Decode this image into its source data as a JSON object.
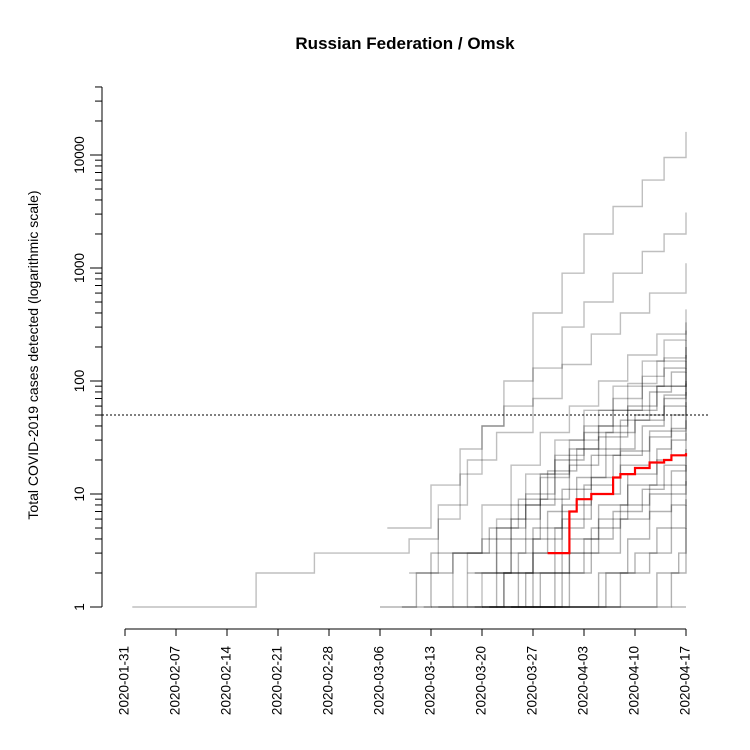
{
  "chart_data": {
    "type": "line",
    "title": "Russian Federation / Omsk",
    "xlabel": "",
    "ylabel": "Total COVID-2019 cases detected (logarithmic scale)",
    "x_range": [
      "2020-01-31",
      "2020-04-17"
    ],
    "x_tick_labels": [
      "2020-01-31",
      "2020-02-07",
      "2020-02-14",
      "2020-02-21",
      "2020-02-28",
      "2020-03-06",
      "2020-03-13",
      "2020-03-20",
      "2020-03-27",
      "2020-04-03",
      "2020-04-10",
      "2020-04-17"
    ],
    "y_scale": "log",
    "y_range": [
      1,
      40000
    ],
    "y_tick_labels": [
      "1",
      "10",
      "100",
      "1000",
      "10000"
    ],
    "reference_line": {
      "y": 50,
      "style": "dotted"
    },
    "grid": false,
    "colors": {
      "highlight": "#ff0000",
      "background_lines": "#000000"
    },
    "highlight_series": {
      "points": [
        [
          "2020-03-29",
          3
        ],
        [
          "2020-03-31",
          3
        ],
        [
          "2020-04-01",
          7
        ],
        [
          "2020-04-02",
          9
        ],
        [
          "2020-04-03",
          9
        ],
        [
          "2020-04-04",
          10
        ],
        [
          "2020-04-06",
          10
        ],
        [
          "2020-04-07",
          14
        ],
        [
          "2020-04-08",
          15
        ],
        [
          "2020-04-09",
          15
        ],
        [
          "2020-04-10",
          17
        ],
        [
          "2020-04-11",
          17
        ],
        [
          "2020-04-12",
          19
        ],
        [
          "2020-04-14",
          20
        ],
        [
          "2020-04-15",
          22
        ],
        [
          "2020-04-17",
          23
        ]
      ]
    },
    "background_series": [
      {
        "points": [
          [
            "2020-02-01",
            1
          ],
          [
            "2020-02-17",
            1
          ],
          [
            "2020-02-18",
            2
          ],
          [
            "2020-02-25",
            2
          ],
          [
            "2020-02-26",
            3
          ],
          [
            "2020-03-05",
            3
          ],
          [
            "2020-03-10",
            4
          ],
          [
            "2020-03-14",
            6
          ],
          [
            "2020-03-17",
            15
          ],
          [
            "2020-03-20",
            40
          ],
          [
            "2020-03-23",
            100
          ],
          [
            "2020-03-27",
            400
          ],
          [
            "2020-03-31",
            900
          ],
          [
            "2020-04-03",
            2000
          ],
          [
            "2020-04-07",
            3500
          ],
          [
            "2020-04-11",
            6000
          ],
          [
            "2020-04-14",
            9500
          ],
          [
            "2020-04-17",
            16000
          ]
        ],
        "opacity": 0.25
      },
      {
        "points": [
          [
            "2020-03-07",
            5
          ],
          [
            "2020-03-09",
            5
          ],
          [
            "2020-03-13",
            12
          ],
          [
            "2020-03-17",
            25
          ],
          [
            "2020-03-20",
            40
          ],
          [
            "2020-03-23",
            60
          ],
          [
            "2020-03-27",
            130
          ],
          [
            "2020-03-31",
            300
          ],
          [
            "2020-04-03",
            500
          ],
          [
            "2020-04-07",
            900
          ],
          [
            "2020-04-11",
            1400
          ],
          [
            "2020-04-14",
            2000
          ],
          [
            "2020-04-17",
            3100
          ]
        ],
        "opacity": 0.25
      },
      {
        "points": [
          [
            "2020-03-10",
            2
          ],
          [
            "2020-03-14",
            8
          ],
          [
            "2020-03-18",
            20
          ],
          [
            "2020-03-22",
            35
          ],
          [
            "2020-03-27",
            70
          ],
          [
            "2020-03-31",
            140
          ],
          [
            "2020-04-04",
            260
          ],
          [
            "2020-04-08",
            400
          ],
          [
            "2020-04-12",
            600
          ],
          [
            "2020-04-17",
            1100
          ]
        ],
        "opacity": 0.25
      },
      {
        "points": [
          [
            "2020-03-12",
            1
          ],
          [
            "2020-03-16",
            3
          ],
          [
            "2020-03-20",
            8
          ],
          [
            "2020-03-24",
            18
          ],
          [
            "2020-03-28",
            35
          ],
          [
            "2020-04-01",
            60
          ],
          [
            "2020-04-05",
            100
          ],
          [
            "2020-04-09",
            170
          ],
          [
            "2020-04-13",
            260
          ],
          [
            "2020-04-17",
            430
          ]
        ],
        "opacity": 0.25
      },
      {
        "points": [
          [
            "2020-03-14",
            1
          ],
          [
            "2020-03-18",
            3
          ],
          [
            "2020-03-22",
            6
          ],
          [
            "2020-03-26",
            15
          ],
          [
            "2020-03-30",
            30
          ],
          [
            "2020-04-03",
            55
          ],
          [
            "2020-04-07",
            90
          ],
          [
            "2020-04-11",
            150
          ],
          [
            "2020-04-14",
            230
          ],
          [
            "2020-04-17",
            330
          ]
        ],
        "opacity": 0.25
      },
      {
        "points": [
          [
            "2020-03-16",
            1
          ],
          [
            "2020-03-20",
            2
          ],
          [
            "2020-03-24",
            6
          ],
          [
            "2020-03-28",
            14
          ],
          [
            "2020-04-01",
            30
          ],
          [
            "2020-04-05",
            55
          ],
          [
            "2020-04-09",
            95
          ],
          [
            "2020-04-13",
            150
          ],
          [
            "2020-04-17",
            280
          ]
        ],
        "opacity": 0.25
      },
      {
        "points": [
          [
            "2020-03-18",
            2
          ],
          [
            "2020-03-22",
            5
          ],
          [
            "2020-03-26",
            10
          ],
          [
            "2020-03-30",
            22
          ],
          [
            "2020-04-03",
            40
          ],
          [
            "2020-04-07",
            70
          ],
          [
            "2020-04-11",
            110
          ],
          [
            "2020-04-14",
            160
          ],
          [
            "2020-04-17",
            230
          ]
        ],
        "opacity": 0.25
      },
      {
        "points": [
          [
            "2020-03-18",
            1
          ],
          [
            "2020-03-22",
            3
          ],
          [
            "2020-03-26",
            8
          ],
          [
            "2020-03-30",
            20
          ],
          [
            "2020-04-03",
            35
          ],
          [
            "2020-04-07",
            55
          ],
          [
            "2020-04-11",
            90
          ],
          [
            "2020-04-14",
            130
          ],
          [
            "2020-04-17",
            200
          ]
        ],
        "opacity": 0.3
      },
      {
        "points": [
          [
            "2020-03-19",
            1
          ],
          [
            "2020-03-23",
            2
          ],
          [
            "2020-03-27",
            5
          ],
          [
            "2020-03-31",
            11
          ],
          [
            "2020-04-04",
            22
          ],
          [
            "2020-04-08",
            45
          ],
          [
            "2020-04-12",
            80
          ],
          [
            "2020-04-15",
            120
          ],
          [
            "2020-04-17",
            170
          ]
        ],
        "opacity": 0.3
      },
      {
        "points": [
          [
            "2020-03-19",
            2
          ],
          [
            "2020-03-24",
            4
          ],
          [
            "2020-03-28",
            9
          ],
          [
            "2020-04-01",
            18
          ],
          [
            "2020-04-05",
            32
          ],
          [
            "2020-04-09",
            55
          ],
          [
            "2020-04-13",
            90
          ],
          [
            "2020-04-17",
            150
          ]
        ],
        "opacity": 0.3
      },
      {
        "points": [
          [
            "2020-03-20",
            1
          ],
          [
            "2020-03-25",
            3
          ],
          [
            "2020-03-29",
            7
          ],
          [
            "2020-04-02",
            14
          ],
          [
            "2020-04-06",
            25
          ],
          [
            "2020-04-10",
            45
          ],
          [
            "2020-04-14",
            75
          ],
          [
            "2020-04-17",
            120
          ]
        ],
        "opacity": 0.3
      },
      {
        "points": [
          [
            "2020-03-20",
            1
          ],
          [
            "2020-03-26",
            2
          ],
          [
            "2020-03-30",
            5
          ],
          [
            "2020-04-03",
            12
          ],
          [
            "2020-04-07",
            22
          ],
          [
            "2020-04-11",
            40
          ],
          [
            "2020-04-14",
            60
          ],
          [
            "2020-04-17",
            100
          ]
        ],
        "opacity": 0.3
      },
      {
        "points": [
          [
            "2020-03-21",
            1
          ],
          [
            "2020-03-27",
            3
          ],
          [
            "2020-03-31",
            6
          ],
          [
            "2020-04-04",
            10
          ],
          [
            "2020-04-08",
            18
          ],
          [
            "2020-04-12",
            32
          ],
          [
            "2020-04-15",
            50
          ],
          [
            "2020-04-17",
            80
          ]
        ],
        "opacity": 0.3
      },
      {
        "points": [
          [
            "2020-03-21",
            1
          ],
          [
            "2020-03-28",
            2
          ],
          [
            "2020-04-01",
            4
          ],
          [
            "2020-04-05",
            8
          ],
          [
            "2020-04-09",
            15
          ],
          [
            "2020-04-13",
            25
          ],
          [
            "2020-04-15",
            38
          ],
          [
            "2020-04-17",
            60
          ]
        ],
        "opacity": 0.3
      },
      {
        "points": [
          [
            "2020-03-22",
            1
          ],
          [
            "2020-03-28",
            1
          ],
          [
            "2020-04-01",
            3
          ],
          [
            "2020-04-05",
            6
          ],
          [
            "2020-04-09",
            12
          ],
          [
            "2020-04-13",
            20
          ],
          [
            "2020-04-15",
            30
          ],
          [
            "2020-04-17",
            45
          ]
        ],
        "opacity": 0.3
      },
      {
        "points": [
          [
            "2020-03-23",
            1
          ],
          [
            "2020-03-30",
            2
          ],
          [
            "2020-04-03",
            4
          ],
          [
            "2020-04-07",
            7
          ],
          [
            "2020-04-11",
            11
          ],
          [
            "2020-04-14",
            18
          ],
          [
            "2020-04-17",
            35
          ]
        ],
        "opacity": 0.3
      },
      {
        "points": [
          [
            "2020-03-24",
            1
          ],
          [
            "2020-03-31",
            2
          ],
          [
            "2020-04-04",
            3
          ],
          [
            "2020-04-08",
            6
          ],
          [
            "2020-04-12",
            10
          ],
          [
            "2020-04-15",
            16
          ],
          [
            "2020-04-17",
            25
          ]
        ],
        "opacity": 0.3
      },
      {
        "points": [
          [
            "2020-03-25",
            1
          ],
          [
            "2020-04-01",
            1
          ],
          [
            "2020-04-05",
            2
          ],
          [
            "2020-04-09",
            4
          ],
          [
            "2020-04-12",
            7
          ],
          [
            "2020-04-15",
            10
          ],
          [
            "2020-04-17",
            18
          ]
        ],
        "opacity": 0.3
      },
      {
        "points": [
          [
            "2020-03-26",
            1
          ],
          [
            "2020-04-02",
            1
          ],
          [
            "2020-04-06",
            2
          ],
          [
            "2020-04-10",
            3
          ],
          [
            "2020-04-13",
            5
          ],
          [
            "2020-04-15",
            8
          ],
          [
            "2020-04-17",
            13
          ]
        ],
        "opacity": 0.3
      },
      {
        "points": [
          [
            "2020-03-27",
            1
          ],
          [
            "2020-04-04",
            1
          ],
          [
            "2020-04-08",
            2
          ],
          [
            "2020-04-12",
            3
          ],
          [
            "2020-04-15",
            5
          ],
          [
            "2020-04-17",
            9
          ]
        ],
        "opacity": 0.3
      },
      {
        "points": [
          [
            "2020-03-28",
            1
          ],
          [
            "2020-04-06",
            1
          ],
          [
            "2020-04-10",
            1
          ],
          [
            "2020-04-13",
            2
          ],
          [
            "2020-04-16",
            3
          ],
          [
            "2020-04-17",
            5
          ]
        ],
        "opacity": 0.3
      },
      {
        "points": [
          [
            "2020-03-06",
            1
          ],
          [
            "2020-03-11",
            2
          ],
          [
            "2020-03-16",
            3
          ],
          [
            "2020-03-20",
            4
          ],
          [
            "2020-03-24",
            8
          ],
          [
            "2020-03-28",
            15
          ],
          [
            "2020-04-01",
            25
          ],
          [
            "2020-04-05",
            40
          ],
          [
            "2020-04-09",
            60
          ],
          [
            "2020-04-13",
            90
          ],
          [
            "2020-04-17",
            130
          ]
        ],
        "opacity": 0.3
      },
      {
        "points": [
          [
            "2020-03-09",
            1
          ],
          [
            "2020-03-13",
            3
          ],
          [
            "2020-03-17",
            3
          ],
          [
            "2020-03-21",
            5
          ],
          [
            "2020-03-25",
            9
          ],
          [
            "2020-03-29",
            16
          ],
          [
            "2020-04-02",
            25
          ],
          [
            "2020-04-06",
            35
          ],
          [
            "2020-04-10",
            50
          ],
          [
            "2020-04-14",
            70
          ],
          [
            "2020-04-17",
            95
          ]
        ],
        "opacity": 0.3
      },
      {
        "points": [
          [
            "2020-03-13",
            1
          ],
          [
            "2020-03-18",
            1
          ],
          [
            "2020-03-23",
            2
          ],
          [
            "2020-03-27",
            4
          ],
          [
            "2020-03-31",
            8
          ],
          [
            "2020-04-04",
            14
          ],
          [
            "2020-04-08",
            24
          ],
          [
            "2020-04-12",
            36
          ],
          [
            "2020-04-17",
            65
          ]
        ],
        "opacity": 0.3
      },
      {
        "points": [
          [
            "2020-03-22",
            2
          ],
          [
            "2020-03-27",
            2
          ],
          [
            "2020-03-31",
            3
          ],
          [
            "2020-04-04",
            5
          ],
          [
            "2020-04-08",
            8
          ],
          [
            "2020-04-12",
            12
          ],
          [
            "2020-04-17",
            18
          ]
        ],
        "opacity": 0.3
      },
      {
        "points": [
          [
            "2020-03-24",
            1
          ],
          [
            "2020-04-08",
            1
          ],
          [
            "2020-04-12",
            1
          ],
          [
            "2020-04-15",
            2
          ],
          [
            "2020-04-17",
            8
          ]
        ],
        "opacity": 0.3
      },
      {
        "points": [
          [
            "2020-04-15",
            1
          ],
          [
            "2020-04-17",
            1
          ]
        ],
        "opacity": 0.3
      }
    ]
  }
}
